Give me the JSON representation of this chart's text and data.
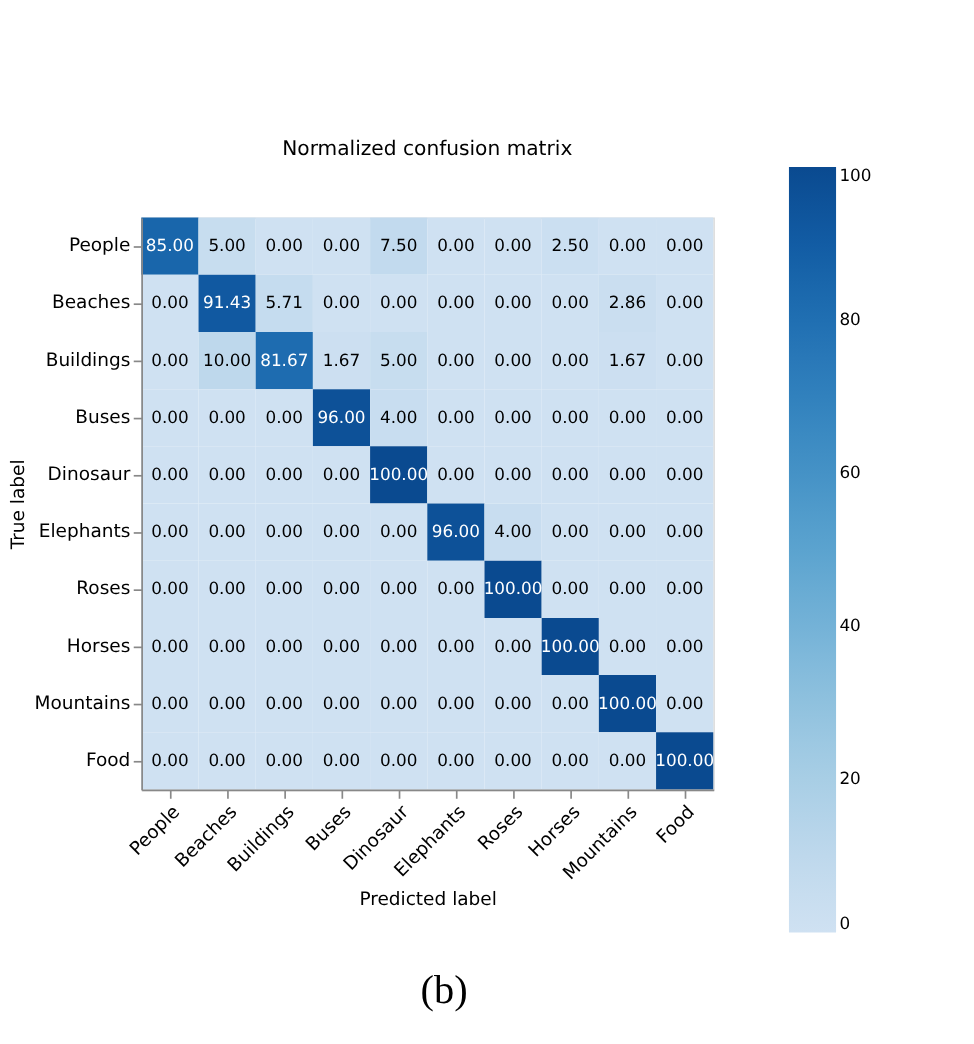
{
  "chart_data": {
    "type": "heatmap",
    "title": "Normalized confusion matrix",
    "xlabel": "Predicted label",
    "ylabel": "True label",
    "categories": [
      "People",
      "Beaches",
      "Buildings",
      "Buses",
      "Dinosaur",
      "Elephants",
      "Roses",
      "Horses",
      "Mountains",
      "Food"
    ],
    "y_categories": [
      "People",
      "Beaches",
      "Buildings",
      "Buses",
      "Dinosaur",
      "Elephants",
      "Roses",
      "Horses",
      "Mountains",
      "Food"
    ],
    "cells": [
      [
        85.0,
        5.0,
        0.0,
        0.0,
        7.5,
        0.0,
        0.0,
        2.5,
        0.0,
        0.0
      ],
      [
        0.0,
        91.43,
        5.71,
        0.0,
        0.0,
        0.0,
        0.0,
        0.0,
        2.86,
        0.0
      ],
      [
        0.0,
        10.0,
        81.67,
        1.67,
        5.0,
        0.0,
        0.0,
        0.0,
        1.67,
        0.0
      ],
      [
        0.0,
        0.0,
        0.0,
        96.0,
        4.0,
        0.0,
        0.0,
        0.0,
        0.0,
        0.0
      ],
      [
        0.0,
        0.0,
        0.0,
        0.0,
        100.0,
        0.0,
        0.0,
        0.0,
        0.0,
        0.0
      ],
      [
        0.0,
        0.0,
        0.0,
        0.0,
        0.0,
        96.0,
        4.0,
        0.0,
        0.0,
        0.0
      ],
      [
        0.0,
        0.0,
        0.0,
        0.0,
        0.0,
        0.0,
        100.0,
        0.0,
        0.0,
        0.0
      ],
      [
        0.0,
        0.0,
        0.0,
        0.0,
        0.0,
        0.0,
        0.0,
        100.0,
        0.0,
        0.0
      ],
      [
        0.0,
        0.0,
        0.0,
        0.0,
        0.0,
        0.0,
        0.0,
        0.0,
        100.0,
        0.0
      ],
      [
        0.0,
        0.0,
        0.0,
        0.0,
        0.0,
        0.0,
        0.0,
        0.0,
        0.0,
        100.0
      ]
    ],
    "cell_labels": [
      [
        "85.00",
        "5.00",
        "0.00",
        "0.00",
        "7.50",
        "0.00",
        "0.00",
        "2.50",
        "0.00",
        "0.00"
      ],
      [
        "0.00",
        "91.43",
        "5.71",
        "0.00",
        "0.00",
        "0.00",
        "0.00",
        "0.00",
        "2.86",
        "0.00"
      ],
      [
        "0.00",
        "10.00",
        "81.67",
        "1.67",
        "5.00",
        "0.00",
        "0.00",
        "0.00",
        "1.67",
        "0.00"
      ],
      [
        "0.00",
        "0.00",
        "0.00",
        "96.00",
        "4.00",
        "0.00",
        "0.00",
        "0.00",
        "0.00",
        "0.00"
      ],
      [
        "0.00",
        "0.00",
        "0.00",
        "0.00",
        "100.00",
        "0.00",
        "0.00",
        "0.00",
        "0.00",
        "0.00"
      ],
      [
        "0.00",
        "0.00",
        "0.00",
        "0.00",
        "0.00",
        "96.00",
        "4.00",
        "0.00",
        "0.00",
        "0.00"
      ],
      [
        "0.00",
        "0.00",
        "0.00",
        "0.00",
        "0.00",
        "0.00",
        "100.00",
        "0.00",
        "0.00",
        "0.00"
      ],
      [
        "0.00",
        "0.00",
        "0.00",
        "0.00",
        "0.00",
        "0.00",
        "0.00",
        "100.00",
        "0.00",
        "0.00"
      ],
      [
        "0.00",
        "0.00",
        "0.00",
        "0.00",
        "0.00",
        "0.00",
        "0.00",
        "0.00",
        "100.00",
        "0.00"
      ],
      [
        "0.00",
        "0.00",
        "0.00",
        "0.00",
        "0.00",
        "0.00",
        "0.00",
        "0.00",
        "0.00",
        "100.00"
      ]
    ],
    "clim": [
      0,
      100
    ],
    "cticks": [
      0,
      20,
      40,
      60,
      80,
      100
    ],
    "annotations": [
      "(b)"
    ]
  }
}
